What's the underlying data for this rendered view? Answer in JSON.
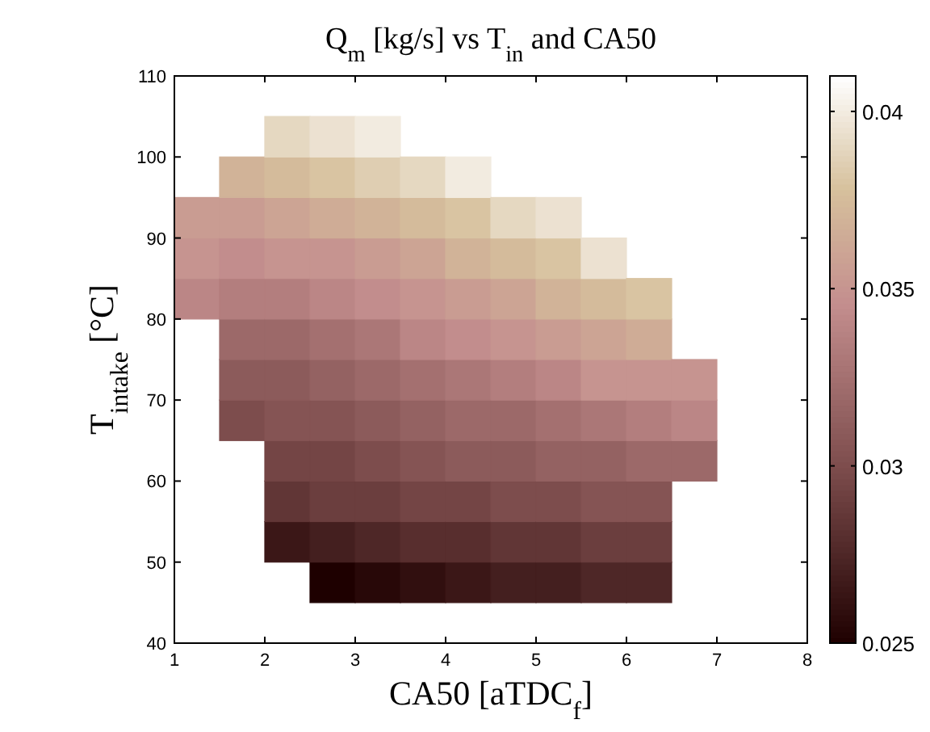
{
  "chart_data": {
    "type": "scatter",
    "title": "Q$_{m}$ [kg/s] vs T$_{in}$ and CA50",
    "xlabel": "CA50   [aTDC$_{f}$]",
    "ylabel": "T$_{intake}$   [°C]",
    "marker": "square",
    "x": [
      1.25,
      1.25,
      1.25,
      1.75,
      1.75,
      1.75,
      1.75,
      1.75,
      1.75,
      1.75,
      2.25,
      2.25,
      2.25,
      2.25,
      2.25,
      2.25,
      2.25,
      2.25,
      2.25,
      2.25,
      2.25,
      2.75,
      2.75,
      2.75,
      2.75,
      2.75,
      2.75,
      2.75,
      2.75,
      2.75,
      2.75,
      2.75,
      2.75,
      3.25,
      3.25,
      3.25,
      3.25,
      3.25,
      3.25,
      3.25,
      3.25,
      3.25,
      3.25,
      3.25,
      3.25,
      3.75,
      3.75,
      3.75,
      3.75,
      3.75,
      3.75,
      3.75,
      3.75,
      3.75,
      3.75,
      3.75,
      4.25,
      4.25,
      4.25,
      4.25,
      4.25,
      4.25,
      4.25,
      4.25,
      4.25,
      4.25,
      4.25,
      4.75,
      4.75,
      4.75,
      4.75,
      4.75,
      4.75,
      4.75,
      4.75,
      4.75,
      4.75,
      5.25,
      5.25,
      5.25,
      5.25,
      5.25,
      5.25,
      5.25,
      5.25,
      5.25,
      5.25,
      5.75,
      5.75,
      5.75,
      5.75,
      5.75,
      5.75,
      5.75,
      5.75,
      5.75,
      6.25,
      6.25,
      6.25,
      6.25,
      6.25,
      6.25,
      6.25,
      6.25,
      6.75,
      6.75,
      6.75
    ],
    "values": [
      82.5,
      87.5,
      92.5,
      67.5,
      72.5,
      77.5,
      82.5,
      87.5,
      92.5,
      97.5,
      52.5,
      57.5,
      62.5,
      67.5,
      72.5,
      77.5,
      82.5,
      87.5,
      92.5,
      97.5,
      102.5,
      47.5,
      52.5,
      57.5,
      62.5,
      67.5,
      72.5,
      77.5,
      82.5,
      87.5,
      92.5,
      97.5,
      102.5,
      47.5,
      52.5,
      57.5,
      62.5,
      67.5,
      72.5,
      77.5,
      82.5,
      87.5,
      92.5,
      97.5,
      102.5,
      47.5,
      52.5,
      57.5,
      62.5,
      67.5,
      72.5,
      77.5,
      82.5,
      87.5,
      92.5,
      97.5,
      47.5,
      52.5,
      57.5,
      62.5,
      67.5,
      72.5,
      77.5,
      82.5,
      87.5,
      92.5,
      97.5,
      47.5,
      52.5,
      57.5,
      62.5,
      67.5,
      72.5,
      77.5,
      82.5,
      87.5,
      92.5,
      47.5,
      52.5,
      57.5,
      62.5,
      67.5,
      72.5,
      77.5,
      82.5,
      87.5,
      92.5,
      47.5,
      52.5,
      57.5,
      62.5,
      67.5,
      72.5,
      77.5,
      82.5,
      87.5,
      47.5,
      52.5,
      57.5,
      62.5,
      67.5,
      72.5,
      77.5,
      82.5,
      62.5,
      67.5,
      72.5
    ],
    "cvalues": [
      0.034,
      0.035,
      0.0355,
      0.03,
      0.031,
      0.032,
      0.0335,
      0.0345,
      0.0355,
      0.037,
      0.0265,
      0.0285,
      0.0295,
      0.0305,
      0.031,
      0.032,
      0.0335,
      0.035,
      0.036,
      0.0375,
      0.039,
      0.025,
      0.027,
      0.029,
      0.0295,
      0.0305,
      0.0315,
      0.0325,
      0.034,
      0.035,
      0.0365,
      0.038,
      0.0395,
      0.0255,
      0.0275,
      0.029,
      0.03,
      0.031,
      0.032,
      0.033,
      0.0345,
      0.0355,
      0.037,
      0.0385,
      0.04,
      0.026,
      0.028,
      0.0295,
      0.0305,
      0.0315,
      0.0325,
      0.034,
      0.035,
      0.036,
      0.0375,
      0.039,
      0.0265,
      0.028,
      0.0295,
      0.031,
      0.032,
      0.033,
      0.0345,
      0.0355,
      0.037,
      0.038,
      0.04,
      0.027,
      0.0285,
      0.03,
      0.031,
      0.032,
      0.0335,
      0.035,
      0.036,
      0.0375,
      0.039,
      0.027,
      0.0285,
      0.03,
      0.0315,
      0.0325,
      0.034,
      0.0355,
      0.037,
      0.038,
      0.0395,
      0.0275,
      0.029,
      0.0305,
      0.0315,
      0.033,
      0.035,
      0.036,
      0.0375,
      0.0395,
      0.0275,
      0.029,
      0.0305,
      0.032,
      0.0335,
      0.035,
      0.0365,
      0.038,
      0.032,
      0.034,
      0.035
    ],
    "xlim": [
      1,
      8
    ],
    "ylim": [
      40,
      110
    ],
    "xticks": [
      1,
      2,
      3,
      4,
      5,
      6,
      7,
      8
    ],
    "yticks": [
      40,
      50,
      60,
      70,
      80,
      90,
      100,
      110
    ],
    "clim": [
      0.025,
      0.041
    ],
    "cticks": [
      0.025,
      0.03,
      0.035,
      0.04
    ]
  }
}
